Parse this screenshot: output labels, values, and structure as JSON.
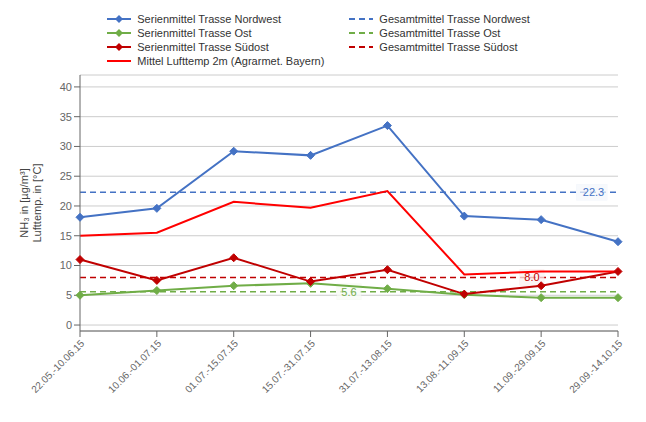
{
  "chart_data": {
    "type": "line",
    "categories": [
      "22.05.-10.06.15",
      "10.06.-01.07.15",
      "01.07.-15.07.15",
      "15.07.-31.07.15",
      "31.07.-13.08.15",
      "13.08.-11.09.15",
      "11.09.-29.09.15",
      "29.09.-14.10.15"
    ],
    "series": [
      {
        "name": "Serienmittel Trasse Nordwest",
        "type": "line",
        "color": "#4472C4",
        "marker": "diamond",
        "values": [
          18.1,
          19.6,
          29.2,
          28.5,
          33.5,
          18.3,
          17.7,
          14.0
        ]
      },
      {
        "name": "Serienmittel Trasse Ost",
        "type": "line",
        "color": "#70AD47",
        "marker": "diamond",
        "values": [
          5.0,
          5.8,
          6.6,
          7.0,
          6.1,
          5.1,
          4.6,
          4.6
        ]
      },
      {
        "name": "Serienmittel Trasse Südost",
        "type": "line",
        "color": "#C00000",
        "marker": "diamond",
        "values": [
          11.0,
          7.5,
          11.3,
          7.3,
          9.3,
          5.2,
          6.6,
          9.0
        ]
      },
      {
        "name": "Mittel Lufttemp 2m (Agrarmet. Bayern)",
        "type": "line",
        "color": "#FF0000",
        "marker": "none",
        "values": [
          15.0,
          15.5,
          20.7,
          19.7,
          22.5,
          8.5,
          9.0,
          9.0
        ]
      },
      {
        "name": "Gesamtmittel Trasse Nordwest",
        "type": "hline",
        "color": "#4472C4",
        "line_style": "dashed",
        "value": 22.3,
        "value_label": "22.3",
        "data_labels": true
      },
      {
        "name": "Gesamtmittel Trasse Ost",
        "type": "hline",
        "color": "#70AD47",
        "line_style": "dashed",
        "value": 5.6,
        "value_label": "5.6",
        "data_labels": true
      },
      {
        "name": "Gesamtmittel Trasse Südost",
        "type": "hline",
        "color": "#C00000",
        "line_style": "dashed",
        "value": 8.0,
        "value_label": "8.0",
        "data_labels": true
      }
    ],
    "ylabel": "NH₃ in [µg/m³]\nLufttemp. in [°C]",
    "ylim": [
      -1,
      42
    ],
    "yticks": [
      0,
      5,
      10,
      15,
      20,
      25,
      30,
      35,
      40
    ],
    "grid": true,
    "legend": "top"
  }
}
